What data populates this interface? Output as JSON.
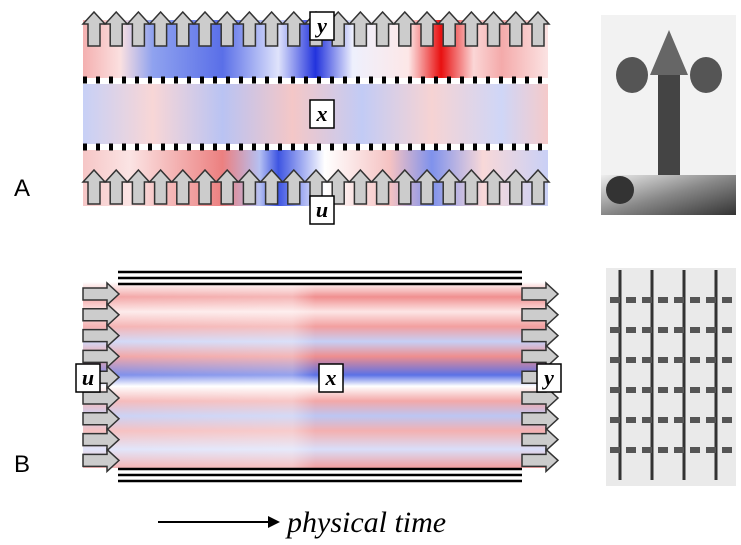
{
  "panels": [
    {
      "label": "A",
      "output": "y",
      "state": "x",
      "input": "u"
    },
    {
      "label": "B",
      "input": "u",
      "state": "x",
      "output": "y"
    }
  ],
  "time_axis": "physical time"
}
